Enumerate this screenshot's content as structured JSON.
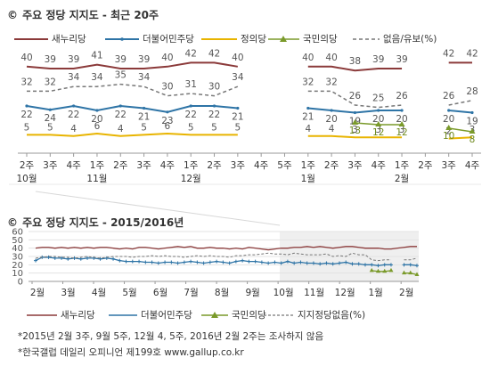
{
  "colors": {
    "saenuri": "#8b3a3a",
    "minjoo": "#2e74a6",
    "justice": "#e8b400",
    "people": "#7a9a2a",
    "none": "#777777"
  },
  "top": {
    "title": "주요 정당 지지도 - 최근 20주",
    "icon_name": "copyright-icon",
    "legend": [
      "새누리당",
      "더불어민주당",
      "정의당",
      "국민의당",
      "없음/유보(%)"
    ]
  },
  "bottom": {
    "title": "주요 정당 지지도 - 2015/2016년",
    "icon_name": "copyright-icon",
    "legend": [
      "새누리당",
      "더불어민주당",
      "국민의당",
      "지지정당없음(%)"
    ],
    "notes": [
      "*2015년 2월 3주, 9월 5주, 12월 4, 5주, 2016년 2월 2주는 조사하지 않음",
      "*한국갤럽 데일리 오피니언 제199호 www.gallup.co.kr"
    ]
  },
  "chart_data": [
    {
      "type": "line",
      "title": "주요 정당 지지도 - 최근 20주",
      "ylabel": "%",
      "categories": [
        "2주",
        "3주",
        "4주",
        "1주",
        "2주",
        "3주",
        "4주",
        "1주",
        "2주",
        "3주",
        "4주",
        "5주",
        "1주",
        "2주",
        "3주",
        "4주",
        "1주",
        "2주",
        "3주",
        "4주"
      ],
      "month_labels": [
        {
          "index": 0,
          "label": "10월"
        },
        {
          "index": 3,
          "label": "11월"
        },
        {
          "index": 7,
          "label": "12월"
        },
        {
          "index": 12,
          "label": "1월"
        },
        {
          "index": 16,
          "label": "2월"
        }
      ],
      "gaps_after_index": [
        10,
        15
      ],
      "series": [
        {
          "name": "새누리당",
          "values": [
            40,
            39,
            39,
            41,
            39,
            39,
            40,
            42,
            42,
            40,
            null,
            null,
            40,
            40,
            38,
            39,
            39,
            null,
            42,
            42
          ]
        },
        {
          "name": "더불어민주당",
          "values": [
            22,
            24,
            22,
            20,
            22,
            21,
            23,
            22,
            22,
            21,
            null,
            null,
            21,
            20,
            19,
            20,
            20,
            null,
            20,
            19
          ]
        },
        {
          "name": "정의당",
          "values": [
            5,
            5,
            4,
            6,
            4,
            5,
            6,
            5,
            5,
            5,
            null,
            null,
            4,
            4,
            3,
            3,
            3,
            null,
            2,
            3
          ]
        },
        {
          "name": "국민의당",
          "values": [
            null,
            null,
            null,
            null,
            null,
            null,
            null,
            null,
            null,
            null,
            null,
            null,
            null,
            null,
            13,
            12,
            12,
            null,
            10,
            8
          ]
        },
        {
          "name": "없음/유보(%)",
          "values": [
            32,
            32,
            34,
            34,
            35,
            34,
            30,
            31,
            30,
            34,
            null,
            null,
            32,
            32,
            26,
            25,
            26,
            null,
            26,
            28
          ]
        }
      ]
    },
    {
      "type": "line",
      "title": "주요 정당 지지도 - 2015/2016년",
      "ylim": [
        0,
        60
      ],
      "yticks": [
        0,
        10,
        20,
        30,
        40,
        50,
        60
      ],
      "x_labels": [
        "2월",
        "3월",
        "4월",
        "5월",
        "6월",
        "7월",
        "8월",
        "9월",
        "10월",
        "11월",
        "12월",
        "1월",
        "2월"
      ],
      "series": [
        {
          "name": "새누리당",
          "values": [
            40,
            41,
            41,
            40,
            41,
            40,
            41,
            40,
            41,
            40,
            41,
            41,
            40,
            39,
            40,
            39,
            41,
            41,
            40,
            39,
            40,
            41,
            42,
            41,
            42,
            40,
            40,
            41,
            40,
            40,
            39,
            40,
            39,
            41,
            40,
            39,
            38,
            39,
            40,
            40,
            41,
            41,
            42,
            41,
            42,
            41,
            40,
            41,
            42,
            42,
            41,
            40,
            40,
            40,
            39,
            39,
            40,
            41,
            42,
            42
          ]
        },
        {
          "name": "더불어민주당",
          "values": [
            25,
            29,
            29,
            28,
            28,
            27,
            28,
            27,
            28,
            28,
            27,
            28,
            27,
            25,
            24,
            24,
            24,
            23,
            23,
            22,
            23,
            23,
            22,
            23,
            24,
            23,
            22,
            23,
            24,
            23,
            22,
            24,
            25,
            24,
            24,
            23,
            22,
            23,
            22,
            24,
            22,
            23,
            22,
            22,
            21,
            22,
            21,
            22,
            23,
            21,
            21,
            20,
            20,
            19,
            20,
            20,
            null,
            20,
            20,
            19
          ]
        },
        {
          "name": "국민의당",
          "values": [
            null,
            null,
            null,
            null,
            null,
            null,
            null,
            null,
            null,
            null,
            null,
            null,
            null,
            null,
            null,
            null,
            null,
            null,
            null,
            null,
            null,
            null,
            null,
            null,
            null,
            null,
            null,
            null,
            null,
            null,
            null,
            null,
            null,
            null,
            null,
            null,
            null,
            null,
            null,
            null,
            null,
            null,
            null,
            null,
            null,
            null,
            null,
            null,
            null,
            null,
            null,
            null,
            13,
            12,
            12,
            13,
            null,
            10,
            10,
            8
          ]
        },
        {
          "name": "지지정당없음(%)",
          "values": [
            28,
            29,
            30,
            30,
            29,
            29,
            28,
            29,
            30,
            29,
            28,
            29,
            30,
            30,
            30,
            29,
            30,
            30,
            31,
            30,
            31,
            30,
            30,
            29,
            30,
            31,
            30,
            31,
            30,
            30,
            29,
            31,
            31,
            32,
            32,
            33,
            34,
            33,
            33,
            32,
            34,
            33,
            32,
            32,
            32,
            33,
            30,
            31,
            30,
            34,
            32,
            32,
            26,
            25,
            26,
            26,
            null,
            26,
            26,
            28
          ]
        }
      ]
    }
  ]
}
